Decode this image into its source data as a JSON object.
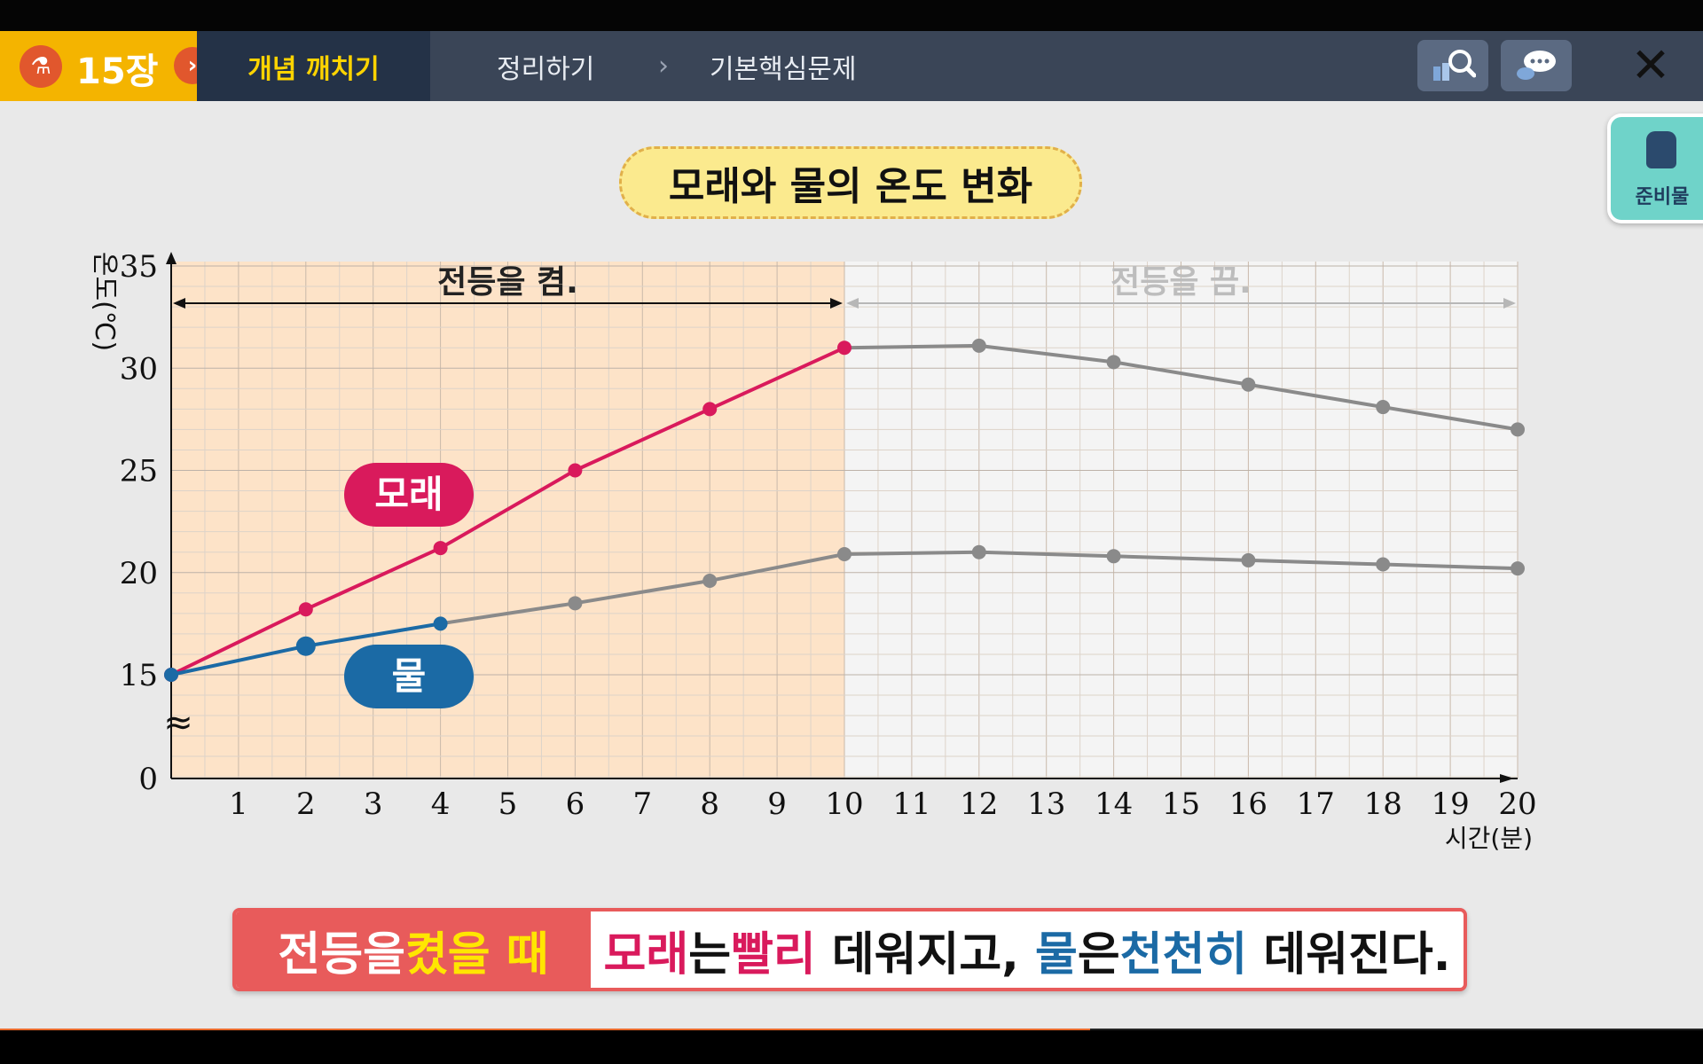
{
  "nav": {
    "chapter": "15장",
    "steps": [
      "개념 깨치기",
      "정리하기",
      "기본핵심문제"
    ],
    "search_icon": "search-icon",
    "chat_icon": "chat-icon",
    "close_icon": "close-icon",
    "prep_label": "준비물"
  },
  "chart_data": {
    "type": "line",
    "title": "모래와 물의 온도 변화",
    "ylabel": "온도(℃)",
    "xlabel": "시간(분)",
    "xlim": [
      0,
      20
    ],
    "ylim": [
      0,
      35
    ],
    "y_ticks": [
      0,
      15,
      20,
      25,
      30,
      35
    ],
    "x_ticks": [
      1,
      2,
      3,
      4,
      5,
      6,
      7,
      8,
      9,
      10,
      11,
      12,
      13,
      14,
      15,
      16,
      17,
      18,
      19,
      20
    ],
    "grid": true,
    "regions": [
      {
        "label": "전등을 켬.",
        "from": 0,
        "to": 10
      },
      {
        "label": "전등을 끔.",
        "from": 10,
        "to": 20
      }
    ],
    "series": [
      {
        "name": "모래",
        "color": "#d91a5c",
        "x": [
          0,
          2,
          4,
          6,
          8,
          10,
          12,
          14,
          16,
          18,
          20
        ],
        "y": [
          15,
          18.2,
          21.2,
          25,
          28,
          31,
          31.1,
          30.3,
          29.2,
          28.1,
          27
        ]
      },
      {
        "name": "물",
        "color": "#1b6aa5",
        "x": [
          0,
          2,
          4,
          6,
          8,
          10,
          12,
          14,
          16,
          18,
          20
        ],
        "y": [
          15,
          16.4,
          17.5,
          18.5,
          19.6,
          20.9,
          21,
          20.8,
          20.6,
          20.4,
          20.2
        ]
      }
    ]
  },
  "banner": {
    "part1": "전등을 ",
    "part2": "켰을 때",
    "seg1": "모래",
    "seg2": "는 ",
    "seg3": "빨리",
    "seg4": " 데워지고, ",
    "seg5": "물",
    "seg6": "은 ",
    "seg7": "천천히",
    "seg8": " 데워진다."
  },
  "progress": 0.64
}
